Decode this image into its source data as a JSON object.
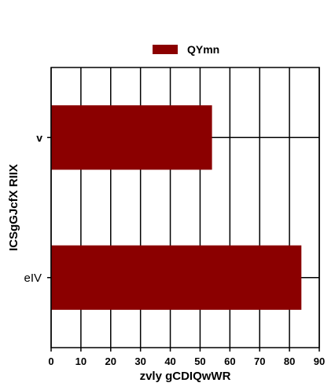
{
  "chart_data": {
    "type": "bar",
    "orientation": "horizontal",
    "categories": [
      "v",
      "eIV"
    ],
    "series": [
      {
        "name": "QYmn",
        "values": [
          54,
          84
        ],
        "color": "#8b0000"
      }
    ],
    "xlabel": "zvly gCDIQwWR",
    "ylabel": "ICSgGJcfX RIIX",
    "xlim": [
      0,
      90
    ],
    "xticks": [
      0,
      10,
      20,
      30,
      40,
      50,
      60,
      70,
      80,
      90
    ],
    "grid": true,
    "legend_position": "top-center"
  }
}
